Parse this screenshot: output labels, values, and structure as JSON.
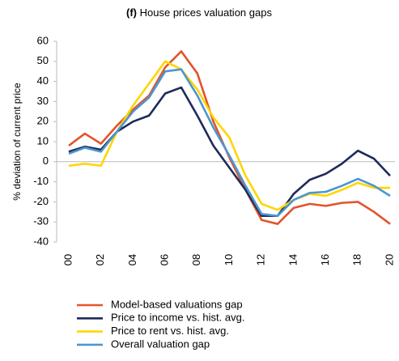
{
  "chart_data": {
    "type": "line",
    "panel": "(f)",
    "title": "House prices valuation gaps",
    "y_label": "% deviation of current price",
    "categories": [
      "00",
      null,
      "02",
      null,
      "04",
      null,
      "06",
      null,
      "08",
      null,
      "10",
      null,
      "12",
      null,
      "14",
      null,
      "16",
      null,
      "18",
      null,
      "20"
    ],
    "series": [
      {
        "name": "Model-based valuations gap",
        "color": "#e2542b",
        "values": [
          8,
          14,
          9,
          18,
          26,
          33,
          47,
          55,
          44,
          20,
          2,
          -14,
          -29,
          -31,
          -23,
          -21,
          -22,
          -20.5,
          -20,
          -25,
          -31
        ]
      },
      {
        "name": "Price to income vs. hist. avg.",
        "color": "#1f2a5a",
        "values": [
          5,
          7.5,
          6,
          15,
          20,
          23,
          34,
          37,
          23,
          8,
          -3,
          -14,
          -27,
          -27,
          -16,
          -9,
          -6,
          -1,
          5.5,
          1.5,
          -7
        ]
      },
      {
        "name": "Price to rent vs. hist. avg.",
        "color": "#ffd500",
        "values": [
          -2,
          -1,
          -2,
          15,
          28,
          39,
          50,
          46,
          36,
          22,
          12,
          -7,
          -21,
          -24,
          -19,
          -16,
          -17,
          -14,
          -10.5,
          -13,
          -13
        ]
      },
      {
        "name": "Overall valuation gap",
        "color": "#4a97d1",
        "values": [
          4,
          7,
          5,
          15,
          25,
          32,
          45,
          46,
          33,
          17,
          3,
          -12,
          -26,
          -27,
          -19,
          -15.5,
          -15,
          -12,
          -8.5,
          -12,
          -17
        ]
      }
    ],
    "ylim": [
      -40,
      60
    ],
    "yticks": [
      -40,
      -30,
      -20,
      -10,
      0,
      10,
      20,
      30,
      40,
      50,
      60
    ],
    "legend": "bottom-left"
  }
}
